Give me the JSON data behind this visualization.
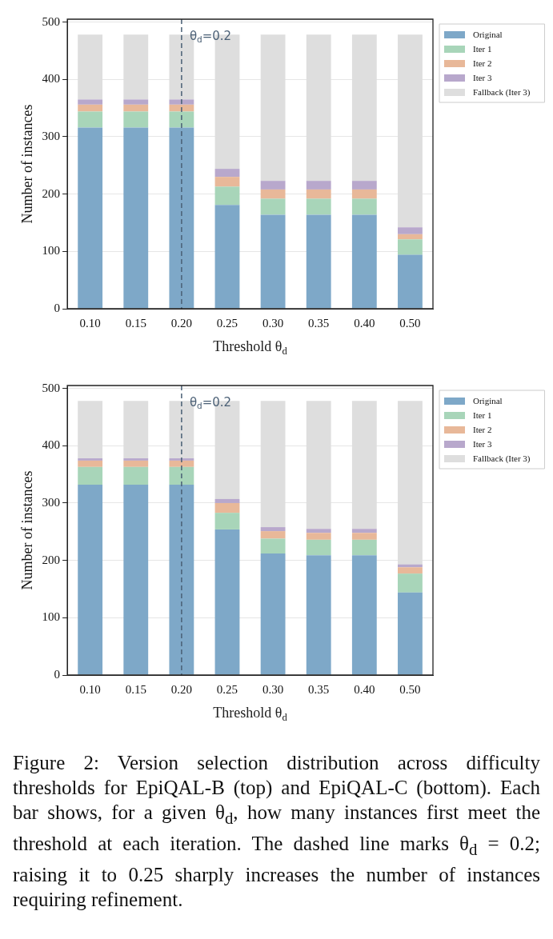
{
  "chart_data": [
    {
      "type": "bar",
      "stacked": true,
      "xlabel": "Threshold θ$_{d}$",
      "ylabel": "Number of instances",
      "categories": [
        "0.10",
        "0.15",
        "0.20",
        "0.25",
        "0.30",
        "0.35",
        "0.40",
        "0.50"
      ],
      "series": [
        {
          "name": "Original",
          "color": "#7ea8c8",
          "values": [
            316,
            316,
            316,
            181,
            164,
            164,
            164,
            94
          ]
        },
        {
          "name": "Iter 1",
          "color": "#a8d5b9",
          "values": [
            28,
            28,
            28,
            32,
            28,
            28,
            28,
            27
          ]
        },
        {
          "name": "Iter 2",
          "color": "#e8b899",
          "values": [
            12,
            12,
            12,
            17,
            16,
            16,
            16,
            9
          ]
        },
        {
          "name": "Iter 3",
          "color": "#b8a8cc",
          "values": [
            9,
            9,
            9,
            14,
            15,
            15,
            15,
            12
          ]
        },
        {
          "name": "Fallback (Iter 3)",
          "color": "#dedede",
          "values": [
            113,
            113,
            113,
            234,
            255,
            255,
            255,
            336
          ]
        }
      ],
      "ylim": [
        0,
        505
      ],
      "yticks": [
        0,
        100,
        200,
        300,
        400,
        500
      ],
      "grid": "y",
      "legend": "right",
      "ref_lines": [
        {
          "axis": "x",
          "value": "0.20",
          "label": "θ$_{d}$=0.2",
          "color": "#4a5f75",
          "line_style": "dashed"
        }
      ]
    },
    {
      "type": "bar",
      "stacked": true,
      "xlabel": "Threshold θ$_{d}$",
      "ylabel": "Number of instances",
      "categories": [
        "0.10",
        "0.15",
        "0.20",
        "0.25",
        "0.30",
        "0.35",
        "0.40",
        "0.50"
      ],
      "series": [
        {
          "name": "Original",
          "color": "#7ea8c8",
          "values": [
            332,
            332,
            332,
            254,
            212,
            209,
            209,
            144
          ]
        },
        {
          "name": "Iter 1",
          "color": "#a8d5b9",
          "values": [
            31,
            31,
            31,
            29,
            26,
            27,
            27,
            33
          ]
        },
        {
          "name": "Iter 2",
          "color": "#e8b899",
          "values": [
            11,
            11,
            11,
            17,
            13,
            12,
            12,
            11
          ]
        },
        {
          "name": "Iter 3",
          "color": "#b8a8cc",
          "values": [
            4,
            4,
            4,
            7,
            7,
            7,
            7,
            5
          ]
        },
        {
          "name": "Fallback (Iter 3)",
          "color": "#dedede",
          "values": [
            100,
            100,
            100,
            171,
            220,
            223,
            223,
            285
          ]
        }
      ],
      "ylim": [
        0,
        505
      ],
      "yticks": [
        0,
        100,
        200,
        300,
        400,
        500
      ],
      "grid": "y",
      "legend": "right",
      "ref_lines": [
        {
          "axis": "x",
          "value": "0.20",
          "label": "θ$_{d}$=0.2",
          "color": "#4a5f75",
          "line_style": "dashed"
        }
      ],
      "annotations": [
        "Figure 2: Version selection distribution across difficulty thresholds for EpiQAL-B (top) and EpiQAL-C (bottom). Each bar shows, for a given θ$_{d}$, how many instances first meet the threshold at each iteration. The dashed line marks θ$_{d}$ = 0.2; raising it to 0.25 sharply increases the number of instances requiring refinement."
      ]
    }
  ]
}
